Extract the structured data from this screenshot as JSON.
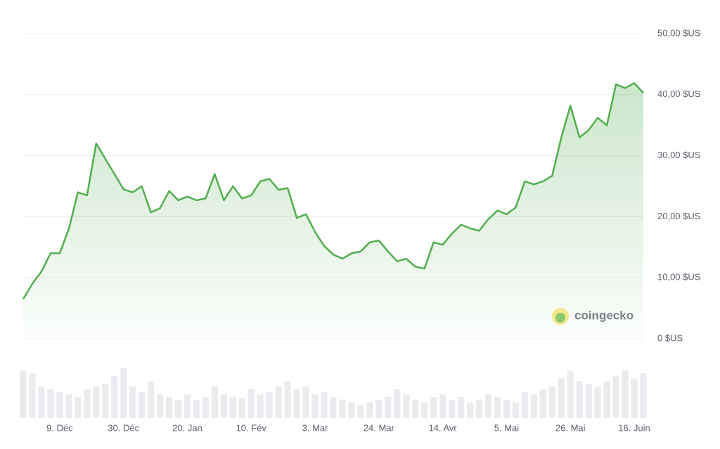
{
  "chart_data": {
    "type": "line",
    "categories": [
      null,
      null,
      null,
      null,
      "9. Déc",
      null,
      null,
      null,
      null,
      null,
      null,
      "30. Déc",
      null,
      null,
      null,
      null,
      null,
      null,
      "20. Jan",
      null,
      null,
      null,
      null,
      null,
      null,
      "10. Fév",
      null,
      null,
      null,
      null,
      null,
      null,
      "3. Mar",
      null,
      null,
      null,
      null,
      null,
      null,
      "24. Mar",
      null,
      null,
      null,
      null,
      null,
      null,
      "14. Avr",
      null,
      null,
      null,
      null,
      null,
      null,
      "5. Mai",
      null,
      null,
      null,
      null,
      null,
      null,
      "26. Mai",
      null,
      null,
      null,
      null,
      null,
      null,
      "16. Juin",
      null
    ],
    "series": [
      {
        "color": "#52ad4f",
        "values": [
          6.5,
          9,
          11,
          14,
          14,
          18,
          24,
          23.5,
          32,
          29.5,
          27,
          24.5,
          24,
          25,
          20.7,
          21.4,
          24.2,
          22.7,
          23.3,
          22.7,
          23,
          27,
          22.7,
          25,
          23,
          23.5,
          25.8,
          26.2,
          24.4,
          24.7,
          19.8,
          20.4,
          17.5,
          15.2,
          13.8,
          13.1,
          14,
          14.3,
          15.8,
          16.1,
          14.3,
          12.7,
          13.1,
          11.8,
          11.5,
          15.8,
          15.4,
          17.2,
          18.7,
          18.1,
          17.7,
          19.6,
          21,
          20.4,
          21.5,
          25.8,
          25.3,
          25.8,
          26.7,
          33,
          38.2,
          33,
          34.2,
          36.2,
          35,
          41.7,
          41.1,
          41.9,
          40.3
        ]
      }
    ],
    "volumes": [
      90,
      85,
      60,
      55,
      50,
      45,
      40,
      55,
      60,
      65,
      80,
      95,
      60,
      50,
      70,
      45,
      40,
      35,
      45,
      35,
      40,
      60,
      45,
      40,
      38,
      55,
      45,
      50,
      60,
      70,
      55,
      60,
      45,
      50,
      40,
      35,
      30,
      25,
      30,
      35,
      40,
      55,
      45,
      35,
      30,
      40,
      45,
      35,
      40,
      30,
      35,
      45,
      40,
      35,
      30,
      50,
      45,
      55,
      60,
      75,
      90,
      70,
      65,
      60,
      70,
      80,
      90,
      75,
      85
    ],
    "volume_ylim": [
      0,
      100
    ],
    "ylim": [
      0,
      50
    ],
    "yticks": [
      {
        "value": 0,
        "label": "0 $US"
      },
      {
        "value": 10,
        "label": "10,00 $US"
      },
      {
        "value": 20,
        "label": "20,00 $US"
      },
      {
        "value": 30,
        "label": "30,00 $US"
      },
      {
        "value": 40,
        "label": "40,00 $US"
      },
      {
        "value": 50,
        "label": "50,00 $US"
      }
    ],
    "grid": true,
    "watermark": "coingecko"
  }
}
